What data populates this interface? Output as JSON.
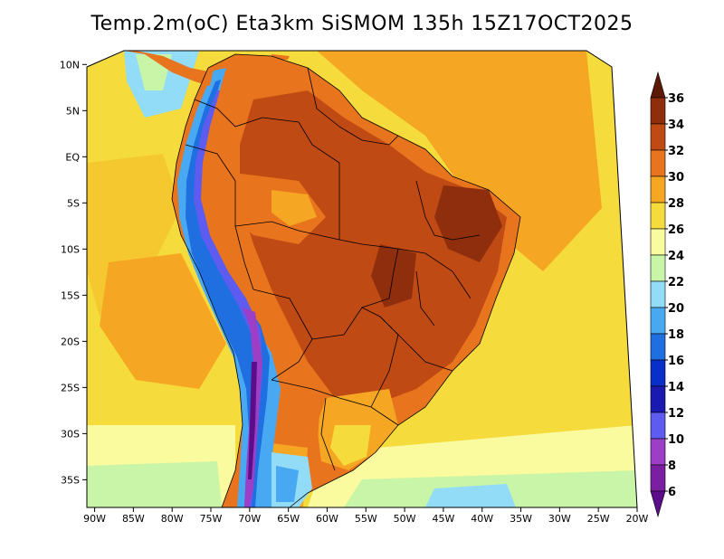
{
  "title": "Temp.2m(oC) Eta3km SiSMOM 135h 15Z17OCT2025",
  "map": {
    "lon_ticks": [
      "90W",
      "85W",
      "80W",
      "75W",
      "70W",
      "65W",
      "60W",
      "55W",
      "50W",
      "45W",
      "40W",
      "35W",
      "30W",
      "25W",
      "20W"
    ],
    "lon_values": [
      -90,
      -85,
      -80,
      -75,
      -70,
      -65,
      -60,
      -55,
      -50,
      -45,
      -40,
      -35,
      -30,
      -25,
      -20
    ],
    "lat_ticks": [
      "10N",
      "5N",
      "EQ",
      "5S",
      "10S",
      "15S",
      "20S",
      "25S",
      "30S",
      "35S"
    ],
    "lat_values": [
      10,
      5,
      0,
      -5,
      -10,
      -15,
      -20,
      -25,
      -30,
      -35
    ],
    "lon_range": [
      -91,
      -20
    ],
    "lat_range": [
      -38,
      11.5
    ]
  },
  "colorbar": {
    "labels": [
      "36",
      "34",
      "32",
      "30",
      "28",
      "26",
      "24",
      "22",
      "20",
      "18",
      "16",
      "14",
      "12",
      "10",
      "8",
      "6"
    ],
    "values": [
      36,
      34,
      32,
      30,
      28,
      26,
      24,
      22,
      20,
      18,
      16,
      14,
      12,
      10,
      8,
      6
    ],
    "colors": {
      "lt6": "#5b0d8a",
      "6_8": "#7a1fa2",
      "8_10": "#9c3fc6",
      "10_12": "#5e5cf0",
      "12_14": "#1a1ab0",
      "14_16": "#0a2fc8",
      "16_18": "#1f6fe0",
      "18_20": "#49a8f2",
      "20_22": "#92dcf7",
      "22_24": "#c8f5a8",
      "24_26": "#fafa9e",
      "26_28": "#f5dc3c",
      "28_30": "#f5a623",
      "30_32": "#e8741e",
      "32_34": "#c04a14",
      "34_36": "#8e2e0c",
      "gt36": "#5c1a06"
    }
  }
}
